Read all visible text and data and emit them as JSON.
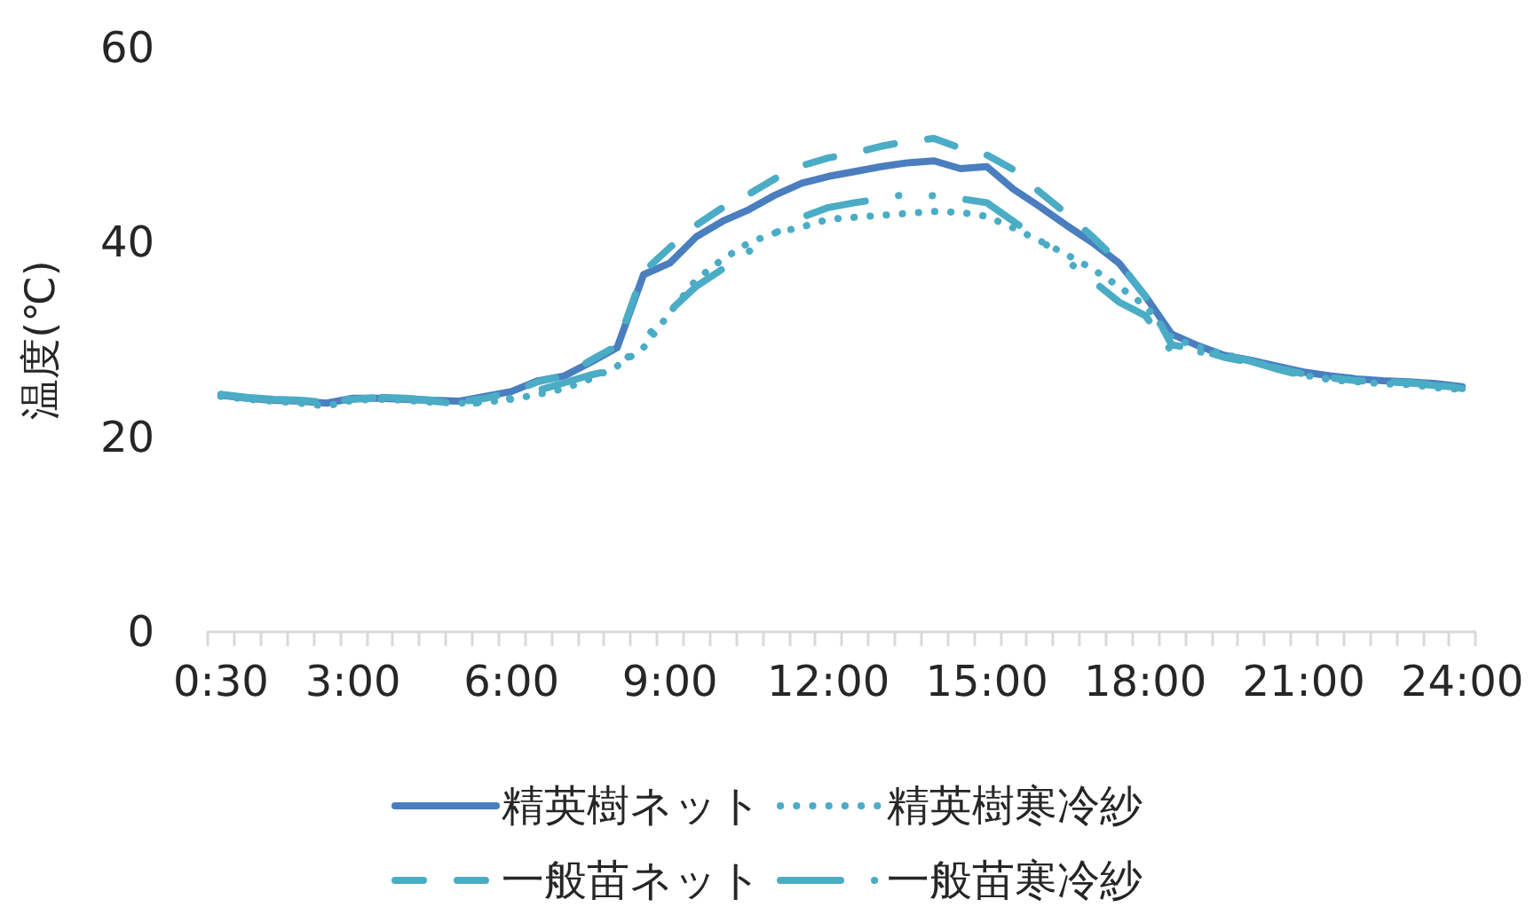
{
  "chart_data": {
    "type": "line",
    "ylabel": "温度(℃)",
    "categories": [
      "0:30",
      null,
      null,
      null,
      null,
      "3:00",
      null,
      null,
      null,
      null,
      null,
      "6:00",
      null,
      null,
      null,
      null,
      null,
      "9:00",
      null,
      null,
      null,
      null,
      null,
      "12:00",
      null,
      null,
      null,
      null,
      null,
      "15:00",
      null,
      null,
      null,
      null,
      null,
      "18:00",
      null,
      null,
      null,
      null,
      null,
      "21:00",
      null,
      null,
      null,
      null,
      null,
      "24:00"
    ],
    "ylim": [
      0,
      60
    ],
    "yticks": [
      0,
      20,
      40,
      60
    ],
    "legend": "bottom",
    "marker": "none",
    "series": [
      {
        "name": "精英樹ネット",
        "color": "#4a7ebf",
        "line_style": "solid",
        "values": [
          24.3,
          24.0,
          23.8,
          23.7,
          23.5,
          24.0,
          24.0,
          23.9,
          23.8,
          23.7,
          24.2,
          24.7,
          25.8,
          26.3,
          27.7,
          29.2,
          36.7,
          37.9,
          40.6,
          42.2,
          43.4,
          44.9,
          46.1,
          46.8,
          47.3,
          47.8,
          48.2,
          48.4,
          47.6,
          47.8,
          45.5,
          43.7,
          41.8,
          40.0,
          37.9,
          34.5,
          30.6,
          29.4,
          28.4,
          27.9,
          27.3,
          26.7,
          26.3,
          26.0,
          25.8,
          25.7,
          25.5,
          25.2
        ]
      },
      {
        "name": "精英樹寒冷紗",
        "color": "#4bacc6",
        "line_style": "dotted",
        "values": [
          24.2,
          23.9,
          23.7,
          23.5,
          23.2,
          23.8,
          23.9,
          23.8,
          23.6,
          23.5,
          23.6,
          23.9,
          24.4,
          25.0,
          26.0,
          27.3,
          29.2,
          32.8,
          36.2,
          38.3,
          40.0,
          41.0,
          41.6,
          42.4,
          42.6,
          42.8,
          43.0,
          43.2,
          43.1,
          42.7,
          41.5,
          40.2,
          38.8,
          37.3,
          35.5,
          33.5,
          30.2,
          29.3,
          28.5,
          27.9,
          27.0,
          26.4,
          25.9,
          25.7,
          25.5,
          25.4,
          25.1,
          24.9
        ]
      },
      {
        "name": "一般苗ネット",
        "color": "#4bacc6",
        "line_style": "dashed",
        "values": [
          24.4,
          24.0,
          23.9,
          23.8,
          23.6,
          23.9,
          24.1,
          24.0,
          23.8,
          23.6,
          24.0,
          24.6,
          25.7,
          26.3,
          27.9,
          29.4,
          37.0,
          39.5,
          41.8,
          43.6,
          45.0,
          46.6,
          47.9,
          48.7,
          49.2,
          49.9,
          50.4,
          50.7,
          49.7,
          49.0,
          47.5,
          45.2,
          43.0,
          40.6,
          38.0,
          34.5,
          29.5,
          29.0,
          28.2,
          27.7,
          27.1,
          26.5,
          26.1,
          25.8,
          25.7,
          25.6,
          25.4,
          25.0
        ]
      },
      {
        "name": "一般苗寒冷紗",
        "color": "#4bacc6",
        "line_style": "dashed",
        "values": [
          24.4,
          24.1,
          23.9,
          23.8,
          23.6,
          24.0,
          24.1,
          24.0,
          23.7,
          23.5,
          23.5,
          24.0,
          24.8,
          25.6,
          26.4,
          27.0,
          30.0,
          33.0,
          35.5,
          37.3,
          39.1,
          41.0,
          42.6,
          43.6,
          44.1,
          44.5,
          45.0,
          44.8,
          44.5,
          44.1,
          42.2,
          40.3,
          38.2,
          36.1,
          33.9,
          32.5,
          28.8,
          28.8,
          28.4,
          27.8,
          27.0,
          26.3,
          26.0,
          25.8,
          25.7,
          25.6,
          25.3,
          25.1
        ]
      }
    ]
  }
}
